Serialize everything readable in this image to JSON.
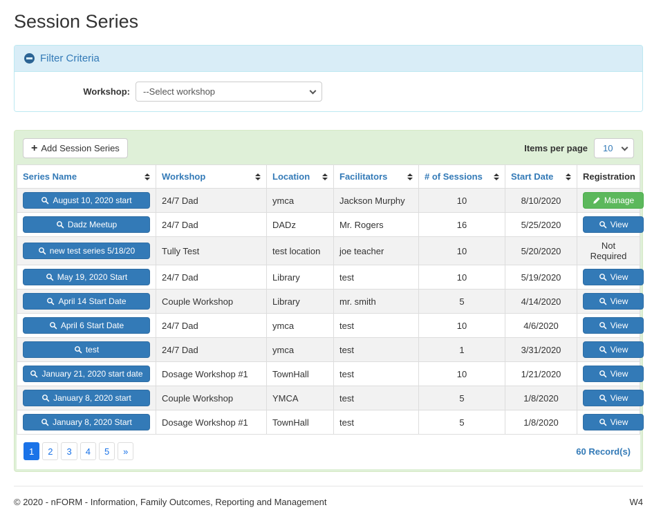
{
  "page": {
    "title": "Session Series",
    "footer": {
      "copyright": "© 2020 - nFORM - Information, Family Outcomes, Reporting and Management",
      "version": "W4"
    }
  },
  "filter": {
    "title": "Filter Criteria",
    "collapse_icon": "minus-circle-icon",
    "workshop_label": "Workshop:",
    "workshop_selected": "--Select workshop",
    "select_icon": "chevron-down-icon"
  },
  "toolbar": {
    "add_button_label": "Add Session Series",
    "add_icon": "plus-icon",
    "items_per_page_label": "Items per page",
    "items_per_page_value": "10"
  },
  "table": {
    "row_button_icon": "search-icon",
    "headers": [
      {
        "label": "Series Name",
        "sortable": true
      },
      {
        "label": "Workshop",
        "sortable": true
      },
      {
        "label": "Location",
        "sortable": true
      },
      {
        "label": "Facilitators",
        "sortable": true
      },
      {
        "label": "# of Sessions",
        "sortable": true
      },
      {
        "label": "Start Date",
        "sortable": true
      },
      {
        "label": "Registration",
        "sortable": false
      }
    ],
    "rows": [
      {
        "series_name": "August 10, 2020 start",
        "workshop": "24/7 Dad",
        "location": "ymca",
        "facilitators": "Jackson Murphy",
        "sessions": "10",
        "start_date": "8/10/2020",
        "registration": {
          "type": "manage",
          "label": "Manage",
          "icon": "pencil-icon"
        }
      },
      {
        "series_name": "Dadz Meetup",
        "workshop": "24/7 Dad",
        "location": "DADz",
        "facilitators": "Mr. Rogers",
        "sessions": "16",
        "start_date": "5/25/2020",
        "registration": {
          "type": "view",
          "label": "View",
          "icon": "search-icon"
        }
      },
      {
        "series_name": "new test series 5/18/20",
        "workshop": "Tully Test",
        "location": "test location",
        "facilitators": "joe teacher",
        "sessions": "10",
        "start_date": "5/20/2020",
        "registration": {
          "type": "text",
          "label": "Not Required"
        }
      },
      {
        "series_name": "May 19, 2020 Start",
        "workshop": "24/7 Dad",
        "location": "Library",
        "facilitators": "test",
        "sessions": "10",
        "start_date": "5/19/2020",
        "registration": {
          "type": "view",
          "label": "View",
          "icon": "search-icon"
        }
      },
      {
        "series_name": "April 14 Start Date",
        "workshop": "Couple Workshop",
        "location": "Library",
        "facilitators": "mr. smith",
        "sessions": "5",
        "start_date": "4/14/2020",
        "registration": {
          "type": "view",
          "label": "View",
          "icon": "search-icon"
        }
      },
      {
        "series_name": "April 6 Start Date",
        "workshop": "24/7 Dad",
        "location": "ymca",
        "facilitators": "test",
        "sessions": "10",
        "start_date": "4/6/2020",
        "registration": {
          "type": "view",
          "label": "View",
          "icon": "search-icon"
        }
      },
      {
        "series_name": "test",
        "workshop": "24/7 Dad",
        "location": "ymca",
        "facilitators": "test",
        "sessions": "1",
        "start_date": "3/31/2020",
        "registration": {
          "type": "view",
          "label": "View",
          "icon": "search-icon"
        }
      },
      {
        "series_name": "January 21, 2020 start date",
        "workshop": "Dosage Workshop #1",
        "location": "TownHall",
        "facilitators": "test",
        "sessions": "10",
        "start_date": "1/21/2020",
        "registration": {
          "type": "view",
          "label": "View",
          "icon": "search-icon"
        }
      },
      {
        "series_name": "January 8, 2020 start",
        "workshop": "Couple Workshop",
        "location": "YMCA",
        "facilitators": "test",
        "sessions": "5",
        "start_date": "1/8/2020",
        "registration": {
          "type": "view",
          "label": "View",
          "icon": "search-icon"
        }
      },
      {
        "series_name": "January 8, 2020 Start",
        "workshop": "Dosage Workshop #1",
        "location": "TownHall",
        "facilitators": "test",
        "sessions": "5",
        "start_date": "1/8/2020",
        "registration": {
          "type": "view",
          "label": "View",
          "icon": "search-icon"
        }
      }
    ]
  },
  "pagination": {
    "pages": [
      "1",
      "2",
      "3",
      "4",
      "5",
      "»"
    ],
    "active": "1",
    "records": "60 Record(s)"
  },
  "colors": {
    "primary_blue": "#337ab7",
    "primary_blue_border": "#2e6da4",
    "success_green": "#5cb85c",
    "success_green_border": "#4cae4c",
    "info_heading_bg": "#d9edf7",
    "info_border": "#bce8f1",
    "panel_green_bg": "#dff0d8",
    "panel_green_border": "#d6e9c6",
    "pagination_active": "#1a73e8",
    "stripe_gray": "#f2f2f2"
  }
}
